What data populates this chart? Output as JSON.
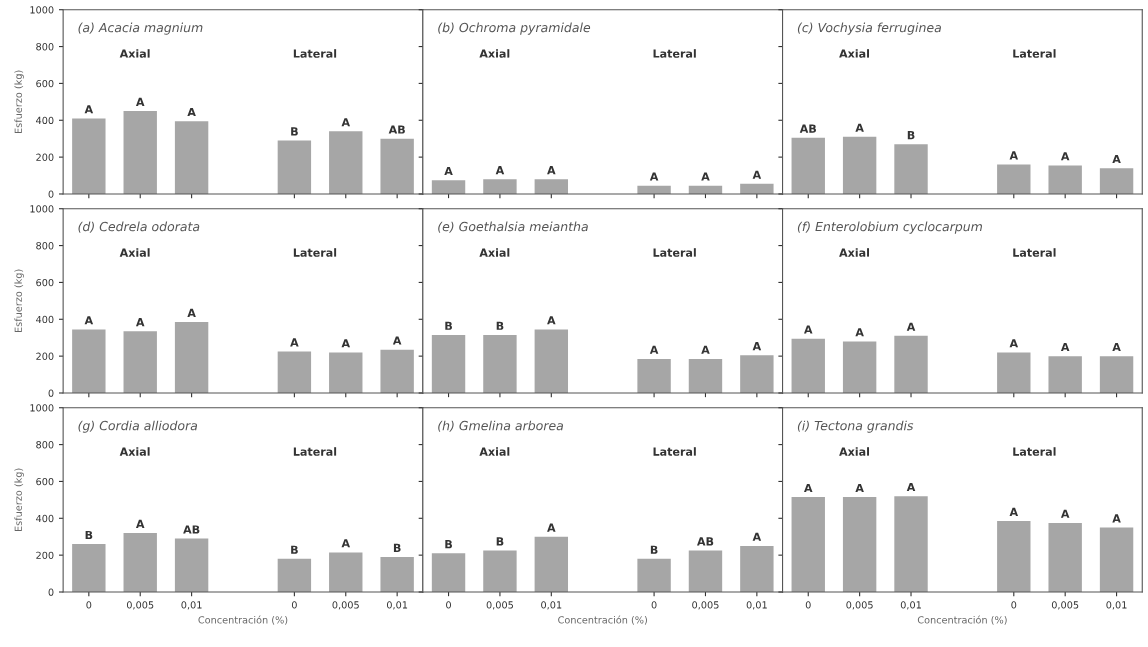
{
  "chart_data": [
    {
      "type": "bar",
      "title": "(a) Acacia magnium",
      "ylabel": "Esfuerzo (kg)",
      "categories": [
        "0",
        "0,005",
        "0,01",
        null,
        "0",
        "0,005",
        "0,01"
      ],
      "values": [
        410,
        450,
        395,
        null,
        290,
        340,
        300
      ],
      "value_labels": [
        "A",
        "A",
        "A",
        null,
        "B",
        "A",
        "AB"
      ],
      "color": "#a6a6a6",
      "annotations": [
        "Axial",
        "Lateral"
      ],
      "ylim": [
        0,
        1000
      ],
      "yticks": [
        0,
        200,
        400,
        600,
        800,
        1000
      ],
      "tick_labels": "y"
    },
    {
      "type": "bar",
      "title": "(b) Ochroma pyramidale",
      "categories": [
        "0",
        "0,005",
        "0,01",
        null,
        "0",
        "0,005",
        "0,01"
      ],
      "values": [
        75,
        80,
        80,
        null,
        45,
        45,
        55
      ],
      "value_labels": [
        "A",
        "A",
        "A",
        null,
        "A",
        "A",
        "A"
      ],
      "color": "#a6a6a6",
      "annotations": [
        "Axial",
        "Lateral"
      ],
      "ylim": [
        0,
        1000
      ],
      "yticks": [
        0,
        200,
        400,
        600,
        800,
        1000
      ],
      "tick_labels": false
    },
    {
      "type": "bar",
      "title": "(c) Vochysia ferruginea",
      "categories": [
        "0",
        "0,005",
        "0,01",
        null,
        "0",
        "0,005",
        "0,01"
      ],
      "values": [
        305,
        310,
        270,
        null,
        160,
        155,
        140
      ],
      "value_labels": [
        "AB",
        "A",
        "B",
        null,
        "A",
        "A",
        "A"
      ],
      "color": "#a6a6a6",
      "annotations": [
        "Axial",
        "Lateral"
      ],
      "ylim": [
        0,
        1000
      ],
      "yticks": [
        0,
        200,
        400,
        600,
        800,
        1000
      ],
      "tick_labels": false
    },
    {
      "type": "bar",
      "title": "(d) Cedrela odorata",
      "ylabel": "Esfuerzo (kg)",
      "categories": [
        "0",
        "0,005",
        "0,01",
        null,
        "0",
        "0,005",
        "0,01"
      ],
      "values": [
        345,
        335,
        385,
        null,
        225,
        220,
        235
      ],
      "value_labels": [
        "A",
        "A",
        "A",
        null,
        "A",
        "A",
        "A"
      ],
      "color": "#a6a6a6",
      "annotations": [
        "Axial",
        "Lateral"
      ],
      "ylim": [
        0,
        1000
      ],
      "yticks": [
        0,
        200,
        400,
        600,
        800,
        1000
      ],
      "tick_labels": "y"
    },
    {
      "type": "bar",
      "title": "(e) Goethalsia meiantha",
      "categories": [
        "0",
        "0,005",
        "0,01",
        null,
        "0",
        "0,005",
        "0,01"
      ],
      "values": [
        315,
        315,
        345,
        null,
        185,
        185,
        205
      ],
      "value_labels": [
        "B",
        "B",
        "A",
        null,
        "A",
        "A",
        "A"
      ],
      "color": "#a6a6a6",
      "annotations": [
        "Axial",
        "Lateral"
      ],
      "ylim": [
        0,
        1000
      ],
      "yticks": [
        0,
        200,
        400,
        600,
        800,
        1000
      ],
      "tick_labels": false
    },
    {
      "type": "bar",
      "title": "(f) Enterolobium cyclocarpum",
      "categories": [
        "0",
        "0,005",
        "0,01",
        null,
        "0",
        "0,005",
        "0,01"
      ],
      "values": [
        295,
        280,
        310,
        null,
        220,
        200,
        200
      ],
      "value_labels": [
        "A",
        "A",
        "A",
        null,
        "A",
        "A",
        "A"
      ],
      "color": "#a6a6a6",
      "annotations": [
        "Axial",
        "Lateral"
      ],
      "ylim": [
        0,
        1000
      ],
      "yticks": [
        0,
        200,
        400,
        600,
        800,
        1000
      ],
      "tick_labels": false
    },
    {
      "type": "bar",
      "title": "(g) Cordia alliodora",
      "ylabel": "Esfuerzo (kg)",
      "xlabel": "Concentración (%)",
      "categories": [
        "0",
        "0,005",
        "0,01",
        null,
        "0",
        "0,005",
        "0,01"
      ],
      "values": [
        260,
        320,
        290,
        null,
        180,
        215,
        190
      ],
      "value_labels": [
        "B",
        "A",
        "AB",
        null,
        "B",
        "A",
        "B"
      ],
      "color": "#a6a6a6",
      "annotations": [
        "Axial",
        "Lateral"
      ],
      "ylim": [
        0,
        1000
      ],
      "yticks": [
        0,
        200,
        400,
        600,
        800,
        1000
      ]
    },
    {
      "type": "bar",
      "title": "(h) Gmelina arborea",
      "xlabel": "Concentración (%)",
      "categories": [
        "0",
        "0,005",
        "0,01",
        null,
        "0",
        "0,005",
        "0,01"
      ],
      "values": [
        210,
        225,
        300,
        null,
        180,
        225,
        250
      ],
      "value_labels": [
        "B",
        "B",
        "A",
        null,
        "B",
        "AB",
        "A"
      ],
      "color": "#a6a6a6",
      "annotations": [
        "Axial",
        "Lateral"
      ],
      "ylim": [
        0,
        1000
      ],
      "yticks": [
        0,
        200,
        400,
        600,
        800,
        1000
      ],
      "tick_labels": "x"
    },
    {
      "type": "bar",
      "title": "(i) Tectona grandis",
      "xlabel": "Concentración (%)",
      "categories": [
        "0",
        "0,005",
        "0,01",
        null,
        "0",
        "0,005",
        "0,01"
      ],
      "values": [
        515,
        515,
        520,
        null,
        385,
        375,
        350
      ],
      "value_labels": [
        "A",
        "A",
        "A",
        null,
        "A",
        "A",
        "A"
      ],
      "color": "#a6a6a6",
      "annotations": [
        "Axial",
        "Lateral"
      ],
      "ylim": [
        0,
        1000
      ],
      "yticks": [
        0,
        200,
        400,
        600,
        800,
        1000
      ],
      "tick_labels": "x"
    }
  ]
}
